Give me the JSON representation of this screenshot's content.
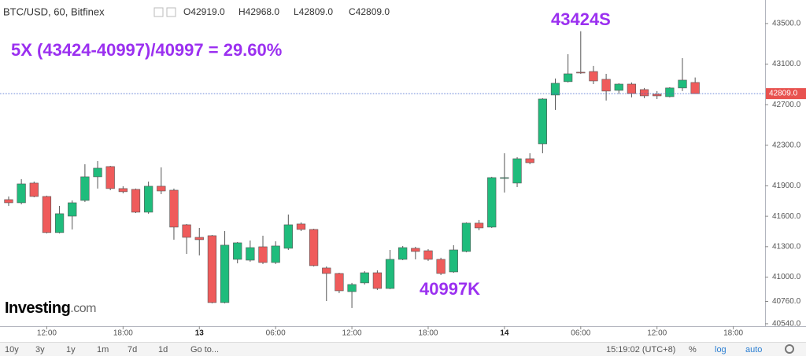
{
  "chart_data": {
    "type": "candlestick",
    "header": {
      "symbol": "BTC/USD, 60, Bitfinex",
      "ohlc": [
        "O42919.0",
        "H42968.0",
        "L42809.0",
        "C42809.0"
      ]
    },
    "annotations": [
      {
        "text": "5X (43424-40997)/40997 = 29.60%"
      },
      {
        "text": "43424S"
      },
      {
        "text": "40997K"
      }
    ],
    "up_color": "#1fbc7c",
    "down_color": "#ef5b5b",
    "x": [
      0,
      1,
      2,
      3,
      4,
      5,
      6,
      7,
      8,
      9,
      10,
      11,
      12,
      13,
      14,
      15,
      16,
      17,
      18,
      19,
      20,
      21,
      22,
      23,
      24,
      25,
      26,
      27,
      28,
      29,
      30,
      31,
      32,
      33,
      34,
      35,
      36,
      37,
      38,
      39,
      40,
      41,
      42,
      43,
      44,
      45,
      46,
      47,
      48,
      49,
      50,
      51,
      52,
      53,
      54
    ],
    "open": [
      41764,
      41733,
      41927,
      41795,
      41439,
      41601,
      41756,
      41989,
      42090,
      41873,
      41865,
      41640,
      41896,
      41857,
      41516,
      41392,
      41408,
      40749,
      41175,
      41167,
      41299,
      41144,
      41284,
      41524,
      41470,
      41090,
      41036,
      40857,
      40943,
      41043,
      40888,
      41175,
      41284,
      41260,
      41175,
      41051,
      41253,
      41532,
      41493,
      41973,
      41927,
      42167,
      42314,
      42795,
      42927,
      43020,
      43027,
      42950,
      42841,
      42903,
      42849,
      42803,
      42779,
      42865,
      42919
    ],
    "high": [
      41795,
      41966,
      41942,
      41803,
      41702,
      41756,
      42113,
      42144,
      42097,
      41896,
      41873,
      41942,
      42082,
      41873,
      41524,
      41485,
      41415,
      41454,
      41346,
      41361,
      41408,
      41353,
      41617,
      41539,
      41477,
      41105,
      41043,
      40943,
      41059,
      41067,
      41268,
      41307,
      41299,
      41276,
      41191,
      41315,
      41539,
      41563,
      41989,
      42221,
      42183,
      42221,
      42764,
      42958,
      43198,
      43424,
      43082,
      43004,
      42911,
      42919,
      42865,
      42834,
      42872,
      43159,
      42968
    ],
    "low": [
      41702,
      41718,
      41787,
      41431,
      41431,
      41470,
      41741,
      41873,
      41857,
      41826,
      41632,
      41625,
      41818,
      41369,
      41229,
      41214,
      40741,
      40741,
      41136,
      41152,
      41129,
      41129,
      41268,
      41454,
      41105,
      40764,
      40842,
      40695,
      40927,
      40873,
      40881,
      41167,
      41175,
      41160,
      41020,
      41043,
      41245,
      41462,
      41485,
      41834,
      41888,
      42113,
      42221,
      42648,
      42919,
      43004,
      42903,
      42741,
      42803,
      42772,
      42764,
      42756,
      42772,
      42834,
      42809
    ],
    "close": [
      41733,
      41919,
      41795,
      41439,
      41625,
      41733,
      41989,
      42074,
      41873,
      41842,
      41640,
      41896,
      41849,
      41493,
      41392,
      41369,
      40749,
      41315,
      41338,
      41291,
      41144,
      41307,
      41516,
      41470,
      41113,
      41036,
      40865,
      40927,
      41043,
      40888,
      41175,
      41291,
      41253,
      41175,
      41036,
      41268,
      41532,
      41485,
      41981,
      41981,
      42167,
      42128,
      42756,
      42911,
      43004,
      43012,
      42934,
      42834,
      42903,
      42810,
      42787,
      42787,
      42865,
      42942,
      42809
    ],
    "last_price": {
      "value": 42809,
      "label": "42809.0"
    },
    "xlim": [
      -0.68,
      59.5
    ],
    "xticks": [
      {
        "value": 3,
        "label": "12:00"
      },
      {
        "value": 9,
        "label": "18:00"
      },
      {
        "value": 15,
        "label": "13"
      },
      {
        "value": 21,
        "label": "06:00"
      },
      {
        "value": 27,
        "label": "12:00"
      },
      {
        "value": 33,
        "label": "18:00"
      },
      {
        "value": 39,
        "label": "14"
      },
      {
        "value": 45,
        "label": "06:00"
      },
      {
        "value": 51,
        "label": "12:00"
      },
      {
        "value": 57,
        "label": "18:00"
      }
    ],
    "ylim": [
      40516,
      43732
    ],
    "yticks": [
      {
        "value": 43500,
        "label": "43500.0"
      },
      {
        "value": 43100,
        "label": "43100.0"
      },
      {
        "value": 42700,
        "label": "42700.0"
      },
      {
        "value": 42300,
        "label": "42300.0"
      },
      {
        "value": 41900,
        "label": "41900.0"
      },
      {
        "value": 41600,
        "label": "41600.0"
      },
      {
        "value": 41300,
        "label": "41300.0"
      },
      {
        "value": 41000,
        "label": "41000.0"
      },
      {
        "value": 40760,
        "label": "40760.0"
      },
      {
        "value": 40540,
        "label": "40540.0"
      }
    ],
    "grid": false
  },
  "logo": {
    "brand": "Investing",
    "suffix": ".com"
  },
  "toolbar": {
    "ranges": [
      "10y",
      "3y",
      "1y",
      "1m",
      "7d",
      "1d"
    ],
    "goto": "Go to...",
    "time": "15:19:02 (UTC+8)",
    "percent": "%",
    "log": "log",
    "auto": "auto"
  }
}
